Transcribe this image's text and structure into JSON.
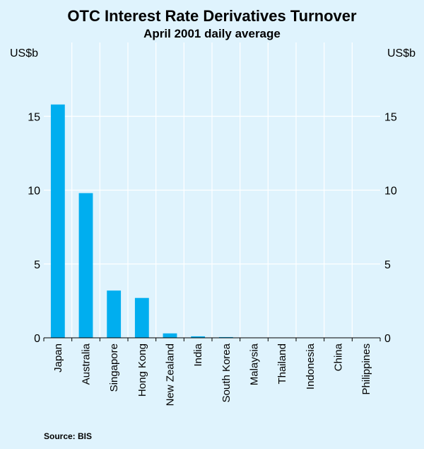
{
  "chart_data": {
    "type": "bar",
    "title": "OTC Interest Rate Derivatives Turnover",
    "subtitle": "April 2001 daily average",
    "unit_left": "US$b",
    "unit_right": "US$b",
    "categories": [
      "Japan",
      "Australia",
      "Singapore",
      "Hong Kong",
      "New Zealand",
      "India",
      "South Korea",
      "Malaysia",
      "Thailand",
      "Indonesia",
      "China",
      "Philippines"
    ],
    "values": [
      15.8,
      9.8,
      3.2,
      2.7,
      0.3,
      0.1,
      0.05,
      0,
      0,
      0,
      0,
      0
    ],
    "ylim": [
      0,
      20
    ],
    "yticks": [
      0,
      5,
      10,
      15
    ],
    "grid": true,
    "bar_color": "#00aeef",
    "source": "Source: BIS"
  }
}
